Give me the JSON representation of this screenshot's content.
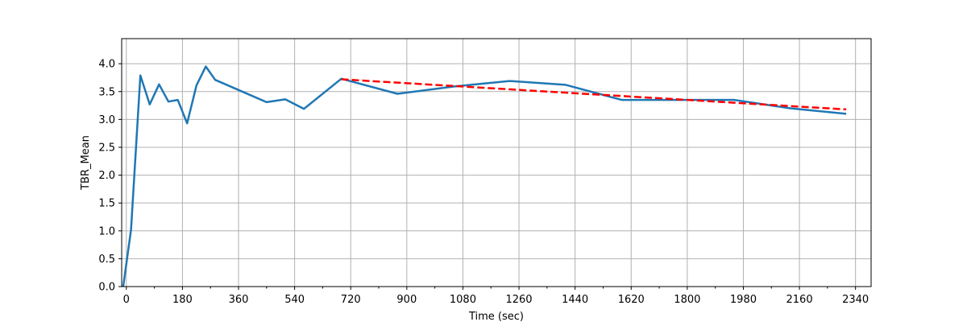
{
  "chart_data": {
    "type": "line",
    "title": "",
    "xlabel": "Time (sec)",
    "ylabel": "TBR_Mean",
    "xlim": [
      -15,
      2390
    ],
    "ylim": [
      0,
      4.45
    ],
    "x_ticks": [
      0,
      180,
      360,
      540,
      720,
      900,
      1080,
      1260,
      1440,
      1620,
      1800,
      1980,
      2160,
      2340
    ],
    "x_minor_ticks": [
      90,
      270,
      450,
      630,
      810,
      990,
      1170,
      1350,
      1530,
      1710,
      1890,
      2070,
      2250
    ],
    "y_ticks": [
      0.0,
      0.5,
      1.0,
      1.5,
      2.0,
      2.5,
      3.0,
      3.5,
      4.0
    ],
    "x_tick_labels": [
      "0",
      "180",
      "360",
      "540",
      "720",
      "900",
      "1080",
      "1260",
      "1440",
      "1620",
      "1800",
      "1980",
      "2160",
      "2340"
    ],
    "y_tick_labels": [
      "0.0",
      "0.5",
      "1.0",
      "1.5",
      "2.0",
      "2.5",
      "3.0",
      "3.5",
      "4.0"
    ],
    "grid": true,
    "series": [
      {
        "color": "#1f77b4",
        "style": "solid",
        "x": [
          -10,
          15,
          45,
          75,
          105,
          135,
          165,
          195,
          225,
          255,
          285,
          450,
          510,
          570,
          690,
          870,
          1050,
          1230,
          1410,
          1590,
          1770,
          1950,
          2130,
          2310
        ],
        "y": [
          0.0,
          1.02,
          3.79,
          3.27,
          3.63,
          3.32,
          3.35,
          2.93,
          3.61,
          3.95,
          3.71,
          3.31,
          3.36,
          3.19,
          3.73,
          3.46,
          3.59,
          3.69,
          3.62,
          3.35,
          3.35,
          3.35,
          3.2,
          3.1
        ]
      },
      {
        "color": "#ff0000",
        "style": "dashed",
        "x": [
          690,
          2310
        ],
        "y": [
          3.72,
          3.18
        ]
      }
    ]
  }
}
